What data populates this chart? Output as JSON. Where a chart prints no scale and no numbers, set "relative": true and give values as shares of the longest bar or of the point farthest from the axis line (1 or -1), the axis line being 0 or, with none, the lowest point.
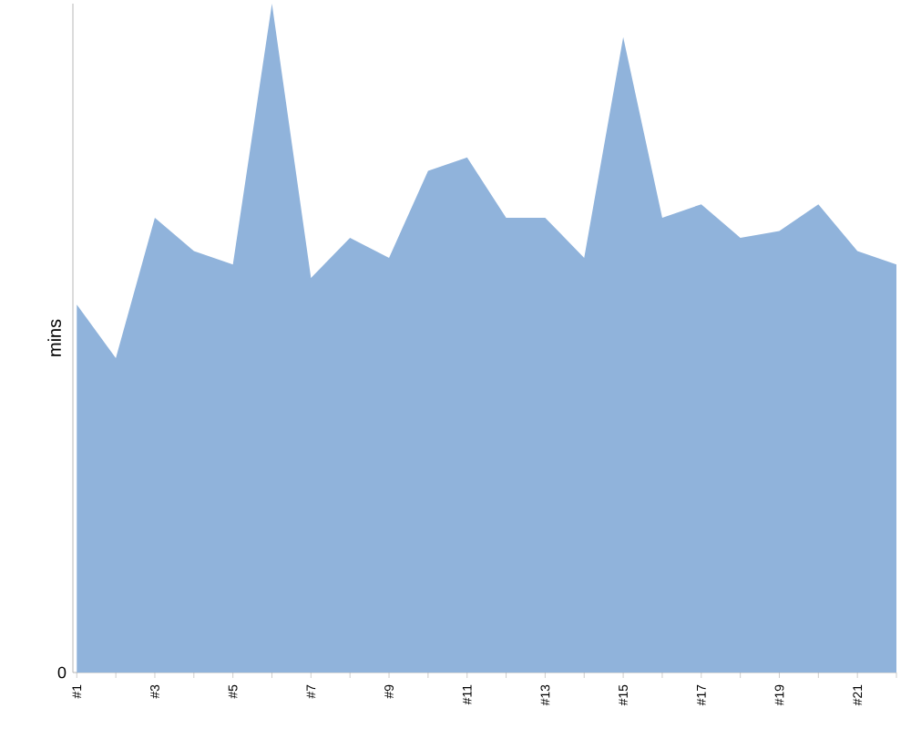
{
  "chart_data": {
    "type": "area",
    "relative": true,
    "ylabel": "mins",
    "color": "#90b3db",
    "categories": [
      "#1",
      null,
      "#3",
      null,
      "#5",
      null,
      "#7",
      null,
      "#9",
      null,
      "#11",
      null,
      "#13",
      null,
      "#15",
      null,
      "#17",
      null,
      "#19",
      null,
      "#21",
      null
    ],
    "values": [
      0.55,
      0.47,
      0.68,
      0.63,
      0.61,
      1,
      0.59,
      0.65,
      0.62,
      0.75,
      0.77,
      0.68,
      0.68,
      0.62,
      0.95,
      0.68,
      0.7,
      0.65,
      0.66,
      0.7,
      0.63,
      0.61
    ],
    "annotations": [
      "0"
    ],
    "grid": false
  }
}
